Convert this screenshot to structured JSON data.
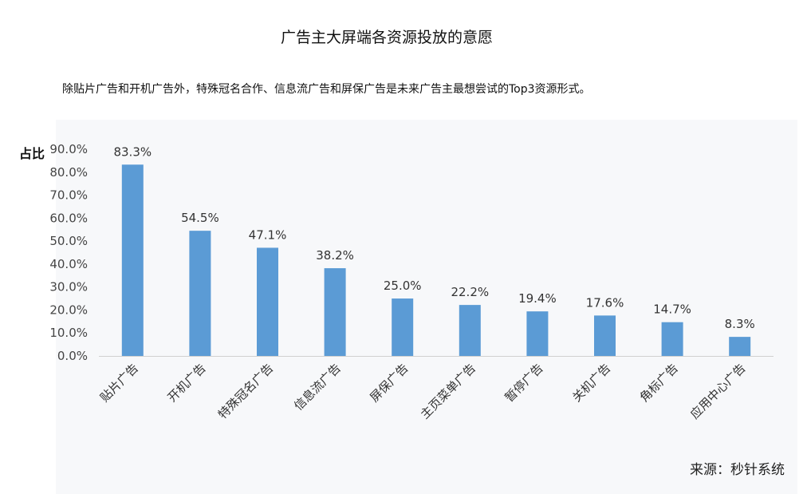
{
  "page": {
    "title": "广告主大屏端各资源投放的意愿",
    "subtitle": "除贴片广告和开机广告外，特殊冠名合作、信息流广告和屏保广告是未来广告主最想尝试的Top3资源形式。",
    "source": "来源：秒针系统"
  },
  "chart_data": {
    "type": "bar",
    "ylabel": "占比",
    "ylim": [
      0,
      90
    ],
    "yticks": [
      "0.0%",
      "10.0%",
      "20.0%",
      "30.0%",
      "40.0%",
      "50.0%",
      "60.0%",
      "70.0%",
      "80.0%",
      "90.0%"
    ],
    "categories": [
      "贴片广告",
      "开机广告",
      "特殊冠名广告",
      "信息流广告",
      "屏保广告",
      "主页菜单广告",
      "暂停广告",
      "关机广告",
      "角标广告",
      "应用中心广告"
    ],
    "values": [
      83.3,
      54.5,
      47.1,
      38.2,
      25.0,
      22.2,
      19.4,
      17.6,
      14.7,
      8.3
    ],
    "data_labels": [
      "83.3%",
      "54.5%",
      "47.1%",
      "38.2%",
      "25.0%",
      "22.2%",
      "19.4%",
      "17.6%",
      "14.7%",
      "8.3%"
    ],
    "bar_color": "#5b9bd5",
    "grid": false
  }
}
